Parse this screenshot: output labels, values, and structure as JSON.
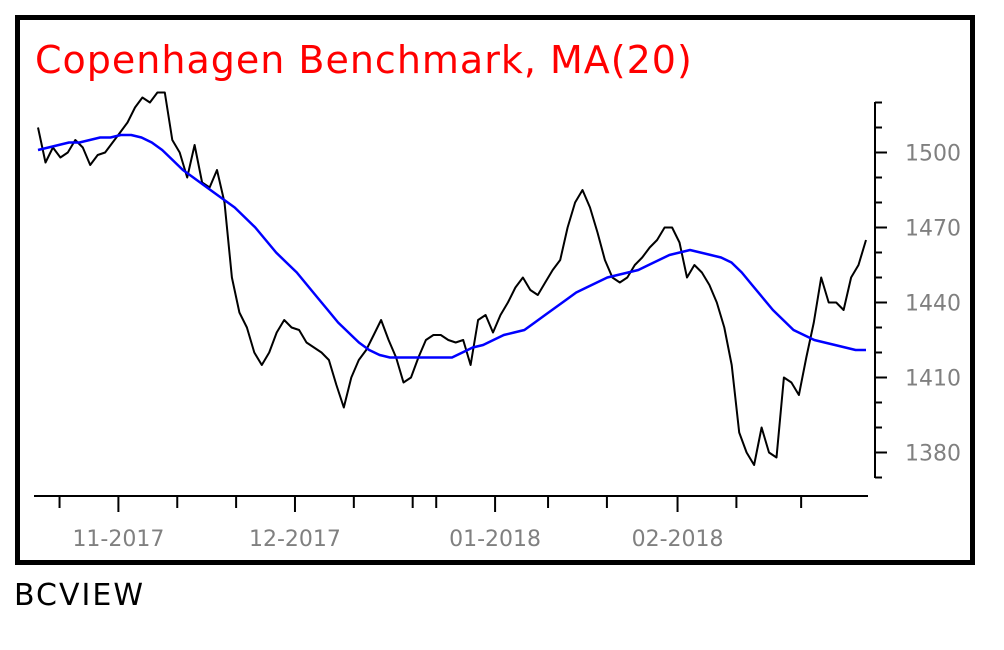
{
  "chart_data": {
    "type": "line",
    "title": "Copenhagen Benchmark, MA(20)",
    "xlabel": "",
    "ylabel": "",
    "x_tick_labels": [
      "11-2017",
      "12-2017",
      "01-2018",
      "02-2018"
    ],
    "y_ticks": [
      1380,
      1410,
      1440,
      1470,
      1500
    ],
    "ylim": [
      1365,
      1525
    ],
    "grid": false,
    "series": [
      {
        "color": "#000000",
        "values": [
          1510,
          1496,
          1502,
          1498,
          1500,
          1505,
          1502,
          1495,
          1499,
          1500,
          1504,
          1508,
          1512,
          1518,
          1522,
          1520,
          1524,
          1524,
          1505,
          1500,
          1490,
          1503,
          1488,
          1486,
          1493,
          1480,
          1450,
          1436,
          1430,
          1420,
          1415,
          1420,
          1428,
          1433,
          1430,
          1429,
          1424,
          1422,
          1420,
          1417,
          1407,
          1398,
          1410,
          1417,
          1421,
          1427,
          1433,
          1425,
          1418,
          1408,
          1410,
          1418,
          1425,
          1427,
          1427,
          1425,
          1424,
          1425,
          1415,
          1433,
          1435,
          1428,
          1435,
          1440,
          1446,
          1450,
          1445,
          1443,
          1448,
          1453,
          1457,
          1470,
          1480,
          1485,
          1478,
          1468,
          1457,
          1450,
          1448,
          1450,
          1455,
          1458,
          1462,
          1465,
          1470,
          1470,
          1464,
          1450,
          1455,
          1452,
          1447,
          1440,
          1430,
          1415,
          1388,
          1380,
          1375,
          1390,
          1380,
          1378,
          1410,
          1408,
          1403,
          1418,
          1432,
          1450,
          1440,
          1440,
          1437,
          1450,
          1455,
          1465
        ]
      },
      {
        "color": "#0000ff",
        "values": [
          1501,
          1502,
          1503,
          1504,
          1504,
          1505,
          1506,
          1506,
          1507,
          1507,
          1506,
          1504,
          1501,
          1497,
          1493,
          1490,
          1487,
          1484,
          1481,
          1478,
          1474,
          1470,
          1465,
          1460,
          1456,
          1452,
          1447,
          1442,
          1437,
          1432,
          1428,
          1424,
          1421,
          1419,
          1418,
          1418,
          1418,
          1418,
          1418,
          1418,
          1418,
          1420,
          1422,
          1423,
          1425,
          1427,
          1428,
          1429,
          1432,
          1435,
          1438,
          1441,
          1444,
          1446,
          1448,
          1450,
          1451,
          1452,
          1453,
          1455,
          1457,
          1459,
          1460,
          1461,
          1460,
          1459,
          1458,
          1456,
          1452,
          1447,
          1442,
          1437,
          1433,
          1429,
          1427,
          1425,
          1424,
          1423,
          1422,
          1421,
          1421
        ]
      }
    ]
  },
  "footer": {
    "brand": "BCVIEW"
  }
}
